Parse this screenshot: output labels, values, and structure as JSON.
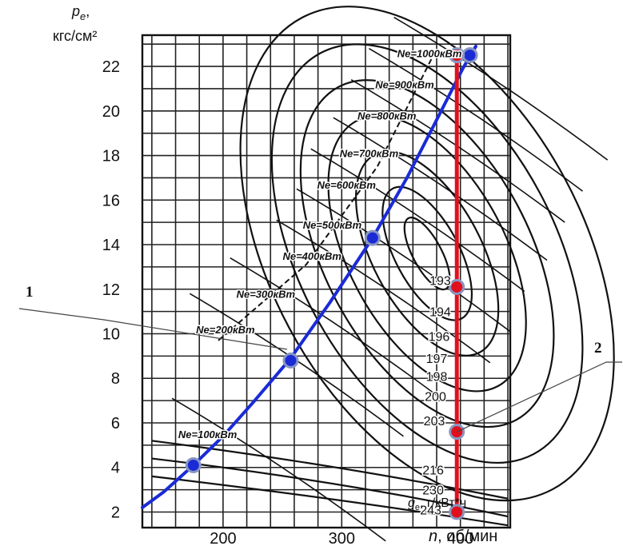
{
  "chart_data": {
    "type": "line",
    "ylabel_symbol": "p",
    "ylabel_subscript": "e",
    "ylabel_comma": ",",
    "ylabel_unit": "кгс/см²",
    "xlabel_var": "n",
    "xlabel_unit": ", об/мин",
    "xlim": [
      132,
      442
    ],
    "ylim": [
      1.3,
      23.4
    ],
    "xticks": [
      200,
      300,
      400
    ],
    "yticks": [
      2,
      4,
      6,
      8,
      10,
      12,
      14,
      16,
      18,
      20,
      22
    ],
    "grid": true,
    "power_lines": [
      {
        "label": "Ne=1000кВт",
        "n": 374,
        "p": 22.6
      },
      {
        "label": "Ne=900кВт",
        "n": 353,
        "p": 21.2
      },
      {
        "label": "Ne=800кВт",
        "n": 338,
        "p": 19.8
      },
      {
        "label": "Ne=700кВт",
        "n": 323,
        "p": 18.1
      },
      {
        "label": "Ne=600кВт",
        "n": 304,
        "p": 16.7
      },
      {
        "label": "Ne=500кВт",
        "n": 292,
        "p": 14.9
      },
      {
        "label": "Ne=400кВт",
        "n": 275,
        "p": 13.5
      },
      {
        "label": "Ne=300кВт",
        "n": 236,
        "p": 11.8
      },
      {
        "label": "Ne=200кВт",
        "n": 202,
        "p": 10.2
      },
      {
        "label": "Ne=100кВт",
        "n": 187,
        "p": 5.5
      }
    ],
    "ge_labels": [
      {
        "label": "193",
        "n": 383,
        "p": 12.4
      },
      {
        "label": "194",
        "n": 383,
        "p": 11.0
      },
      {
        "label": "196",
        "n": 382,
        "p": 9.9
      },
      {
        "label": "197",
        "n": 380,
        "p": 8.9
      },
      {
        "label": "198",
        "n": 380,
        "p": 8.1
      },
      {
        "label": "200",
        "n": 379,
        "p": 7.2
      },
      {
        "label": "203",
        "n": 378,
        "p": 6.1
      },
      {
        "label": "216",
        "n": 377,
        "p": 3.9
      },
      {
        "label": "230",
        "n": 377,
        "p": 3.0
      },
      {
        "label": "243",
        "n": 375,
        "p": 2.1
      }
    ],
    "ge_unit_symbol": "g",
    "ge_unit_subscript": "e",
    "ge_unit": ", г/кВт*ч",
    "series": [
      {
        "color": "#1a2bd6",
        "x": [
          132,
          150,
          175,
          200,
          225,
          257,
          290,
          326,
          355,
          380,
          402,
          413
        ],
        "y": [
          2.2,
          2.9,
          4.1,
          5.4,
          6.9,
          8.9,
          11.4,
          14.3,
          17.0,
          19.6,
          21.9,
          22.9
        ],
        "points": [
          {
            "n": 175,
            "p": 4.1
          },
          {
            "n": 257,
            "p": 8.8
          },
          {
            "n": 326,
            "p": 14.3
          },
          {
            "n": 408,
            "p": 22.5
          }
        ]
      },
      {
        "color": "#e0101c",
        "x": [
          397,
          397
        ],
        "y": [
          2.0,
          22.5
        ],
        "points": [
          {
            "n": 397,
            "p": 22.5
          },
          {
            "n": 397,
            "p": 12.1
          },
          {
            "n": 397,
            "p": 5.6
          },
          {
            "n": 397,
            "p": 2.0
          }
        ]
      }
    ],
    "callouts": [
      {
        "label": "1",
        "n": 254,
        "p": 9.3
      },
      {
        "label": "2",
        "n": 397,
        "p": 5.6
      }
    ]
  }
}
